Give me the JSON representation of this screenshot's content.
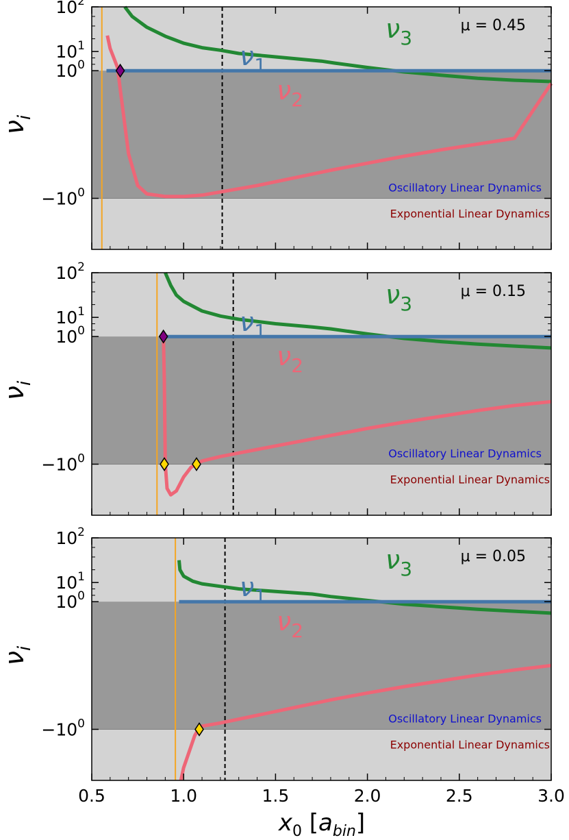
{
  "figure": {
    "xlabel_base": "x",
    "xlabel_sub": "0",
    "xlabel_unit": "a",
    "xlabel_unit_sub": "bin",
    "ylabel_base": "ν",
    "ylabel_sub": "i",
    "ytick_labels": {
      "top": "10",
      "top_exp": "2",
      "mid": "10",
      "mid_exp": "1",
      "one": "10",
      "one_exp": "0",
      "neg": "−10",
      "neg_exp": "0"
    },
    "xtick_labels": [
      "0.5",
      "1.0",
      "1.5",
      "2.0",
      "2.5",
      "3.0"
    ],
    "region_labels": {
      "oscillatory": "Oscillatory Linear Dynamics",
      "exponential": "Exponential Linear Dynamics"
    },
    "curve_labels": {
      "nu1": "ν",
      "nu1_sub": "1",
      "nu2": "ν",
      "nu2_sub": "2",
      "nu3": "ν",
      "nu3_sub": "3"
    }
  },
  "colors": {
    "nu1": "#4477aa",
    "nu2": "#ee6677",
    "nu3": "#228833",
    "orange_line": "#f5a623",
    "bg_light": "#d3d3d3",
    "bg_dark": "#999999",
    "oscillatory_text": "#1010cc",
    "exponential_text": "#8b0000",
    "marker_purple": "#800080",
    "marker_gold": "#ffd700"
  },
  "chart_data": [
    {
      "type": "line",
      "mu_label": "μ =  0.45",
      "xlim": [
        0.5,
        3.0
      ],
      "ylim_scaled": [
        -1.8,
        2.0
      ],
      "orange_x": 0.555,
      "dashed_x": 1.21,
      "series": [
        {
          "name": "ν3",
          "x": [
            0.68,
            0.72,
            0.8,
            0.9,
            1.0,
            1.1,
            1.2,
            1.3,
            1.45,
            1.6,
            1.75,
            1.82,
            2.0,
            2.2,
            2.4,
            2.6,
            2.8,
            3.0
          ],
          "y": [
            2.0,
            1.85,
            1.68,
            1.54,
            1.43,
            1.36,
            1.32,
            1.27,
            1.23,
            1.19,
            1.15,
            1.12,
            1.05,
            0.98,
            0.93,
            0.88,
            0.85,
            0.83
          ]
        },
        {
          "name": "ν1",
          "x": [
            0.58,
            3.0
          ],
          "y": [
            1.0,
            1.0
          ]
        },
        {
          "name": "ν2",
          "x": [
            0.585,
            0.6,
            0.62,
            0.64,
            0.66,
            0.7,
            0.75,
            0.8,
            0.9,
            1.0,
            1.1,
            1.2,
            1.4,
            1.6,
            1.8,
            2.0,
            2.2,
            2.4,
            2.6,
            2.8,
            3.0
          ],
          "y": [
            1.55,
            1.35,
            1.2,
            1.05,
            0.6,
            -0.3,
            -0.8,
            -0.93,
            -0.97,
            -0.97,
            -0.95,
            -0.9,
            -0.8,
            -0.68,
            -0.56,
            -0.45,
            -0.34,
            -0.24,
            -0.15,
            -0.06,
            0.8
          ]
        }
      ],
      "markers": [
        {
          "x": 0.655,
          "y": 1.0,
          "color": "purple"
        }
      ]
    },
    {
      "type": "line",
      "mu_label": "μ =  0.15",
      "xlim": [
        0.5,
        3.0
      ],
      "ylim_scaled": [
        -1.8,
        2.0
      ],
      "orange_x": 0.855,
      "dashed_x": 1.27,
      "series": [
        {
          "name": "ν3",
          "x": [
            0.9,
            0.93,
            0.96,
            1.0,
            1.1,
            1.2,
            1.3,
            1.5,
            1.7,
            1.8,
            2.0,
            2.2,
            2.4,
            2.6,
            2.8,
            3.0
          ],
          "y": [
            2.0,
            1.8,
            1.65,
            1.55,
            1.4,
            1.32,
            1.27,
            1.2,
            1.15,
            1.12,
            1.04,
            0.97,
            0.92,
            0.88,
            0.85,
            0.82
          ]
        },
        {
          "name": "ν1",
          "x": [
            0.9,
            3.0
          ],
          "y": [
            1.0,
            1.0
          ]
        },
        {
          "name": "ν2",
          "x": [
            0.89,
            0.895,
            0.9,
            0.91,
            0.93,
            0.96,
            1.0,
            1.04,
            1.07,
            1.1,
            1.2,
            1.4,
            1.6,
            1.8,
            2.0,
            2.2,
            2.4,
            2.6,
            2.8,
            3.0
          ],
          "y": [
            1.0,
            0.3,
            -1.0,
            -1.38,
            -1.48,
            -1.42,
            -1.2,
            -1.05,
            -1.0,
            -0.95,
            -0.88,
            -0.77,
            -0.66,
            -0.55,
            -0.44,
            -0.34,
            -0.25,
            -0.16,
            -0.08,
            -0.02
          ]
        }
      ],
      "markers": [
        {
          "x": 0.89,
          "y": 1.0,
          "color": "purple"
        },
        {
          "x": 0.895,
          "y": -1.0,
          "color": "gold"
        },
        {
          "x": 1.07,
          "y": -1.0,
          "color": "gold"
        }
      ]
    },
    {
      "type": "line",
      "mu_label": "μ =  0.05",
      "xlim": [
        0.5,
        3.0
      ],
      "ylim_scaled": [
        -1.8,
        2.0
      ],
      "orange_x": 0.955,
      "dashed_x": 1.225,
      "series": [
        {
          "name": "ν3",
          "x": [
            0.975,
            0.98,
            1.0,
            1.05,
            1.1,
            1.2,
            1.3,
            1.5,
            1.7,
            1.8,
            2.0,
            2.2,
            2.4,
            2.6,
            2.8,
            3.0
          ],
          "y": [
            1.65,
            1.5,
            1.4,
            1.32,
            1.28,
            1.24,
            1.2,
            1.16,
            1.12,
            1.08,
            1.02,
            0.96,
            0.92,
            0.88,
            0.85,
            0.82
          ]
        },
        {
          "name": "ν1",
          "x": [
            0.975,
            3.0
          ],
          "y": [
            1.0,
            1.0
          ]
        },
        {
          "name": "ν2",
          "x": [
            0.985,
            1.0,
            1.03,
            1.06,
            1.08,
            1.1,
            1.2,
            1.4,
            1.6,
            1.8,
            2.0,
            2.2,
            2.4,
            2.6,
            2.8,
            3.0
          ],
          "y": [
            -1.8,
            -1.6,
            -1.35,
            -1.1,
            -1.0,
            -0.95,
            -0.9,
            -0.78,
            -0.66,
            -0.54,
            -0.43,
            -0.33,
            -0.24,
            -0.15,
            -0.07,
            0.0
          ]
        }
      ],
      "markers": [
        {
          "x": 1.085,
          "y": -1.0,
          "color": "gold"
        }
      ]
    }
  ]
}
